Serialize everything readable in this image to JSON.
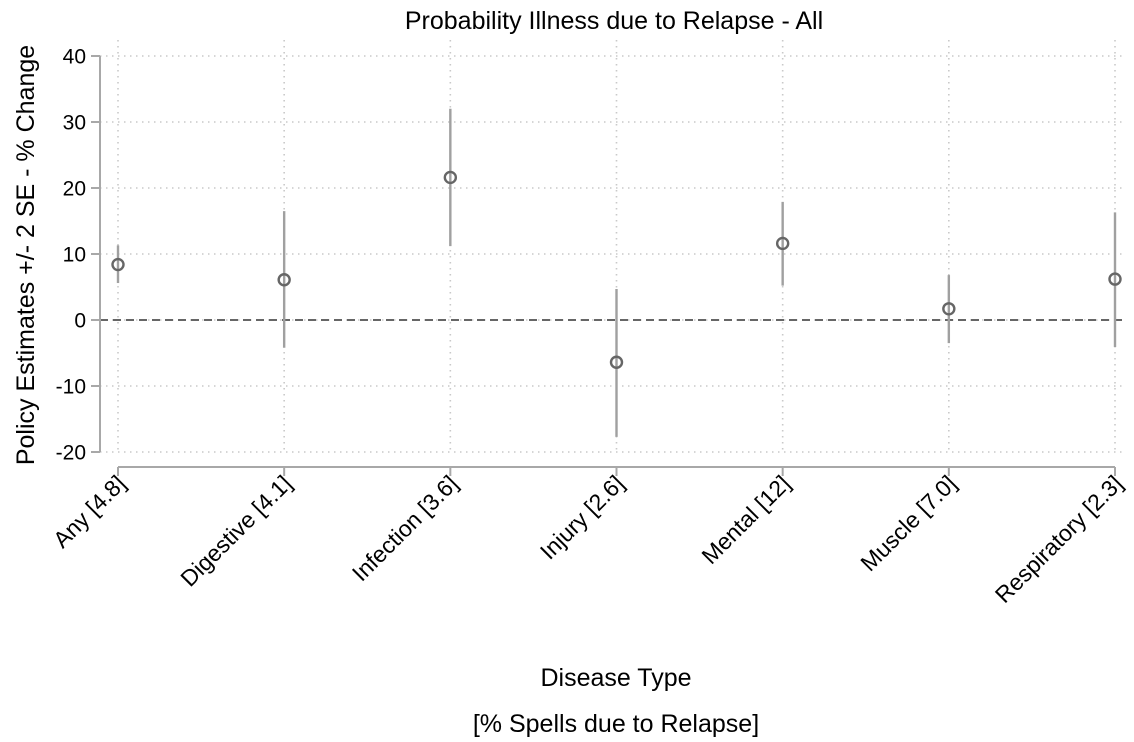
{
  "chart_data": {
    "type": "scatter",
    "title": "Probability Illness due to Relapse - All",
    "ylabel": "Policy Estimates +/- 2 SE - % Change",
    "xlabel": "Disease Type",
    "xlabel_sub": "[% Spells due to Relapse]",
    "ylim": [
      -20,
      40
    ],
    "yticks": [
      40,
      30,
      20,
      10,
      0,
      -10,
      -20
    ],
    "grid": true,
    "reference_line": 0,
    "categories": [
      "Any [4.8]",
      "Digestive [4.1]",
      "Infection [3.6]",
      "Injury [2.6]",
      "Mental [12]",
      "Muscle [7.0]",
      "Respiratory [2.3]"
    ],
    "series": [
      {
        "estimates": [
          8.4,
          6.1,
          21.6,
          -6.4,
          11.6,
          1.7,
          6.2
        ],
        "lower": [
          5.6,
          -4.2,
          11.2,
          -17.7,
          5.2,
          -3.5,
          -4.1
        ],
        "upper": [
          11.3,
          16.5,
          32.0,
          4.7,
          17.9,
          6.8,
          16.3
        ]
      }
    ],
    "colors": {
      "point": "#666666",
      "interval": "#a0a0a0",
      "reference": "#666666",
      "axis": "#a8a8a8",
      "grid": "#c9c9c9"
    }
  }
}
